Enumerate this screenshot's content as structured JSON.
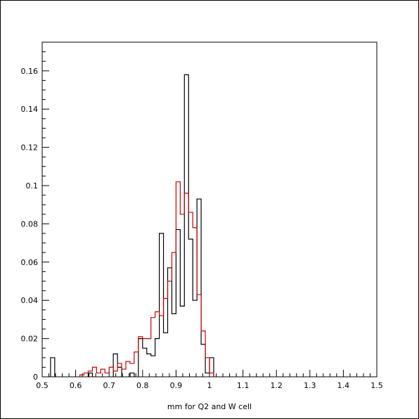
{
  "chart_data": {
    "type": "histogram",
    "title": "",
    "xlabel": "mm for Q2 and W cell",
    "ylabel": "",
    "xlim": [
      0.5,
      1.5
    ],
    "ylim": [
      0,
      0.175
    ],
    "grid": false,
    "legend": "none",
    "bin_width": 0.0125,
    "x_ticks": [
      0.5,
      0.6,
      0.7,
      0.8,
      0.9,
      1.0,
      1.1,
      1.2,
      1.3,
      1.4,
      1.5
    ],
    "x_tick_labels": [
      "0.5",
      "0.6",
      "0.7",
      "0.8",
      "0.9",
      "1",
      "1.1",
      "1.2",
      "1.3",
      "1.4",
      "1.5"
    ],
    "y_ticks": [
      0,
      0.02,
      0.04,
      0.06,
      0.08,
      0.1,
      0.12,
      0.14,
      0.16
    ],
    "y_tick_labels": [
      "0",
      "0.02",
      "0.04",
      "0.06",
      "0.08",
      "0.1",
      "0.12",
      "0.14",
      "0.16"
    ],
    "series": [
      {
        "color": "#000000",
        "bins": [
          [
            0.525,
            0.01
          ],
          [
            0.6375,
            0.002
          ],
          [
            0.7125,
            0.012
          ],
          [
            0.725,
            0.005
          ],
          [
            0.7625,
            0.002
          ],
          [
            0.7875,
            0.02
          ],
          [
            0.8,
            0.015
          ],
          [
            0.8125,
            0.012
          ],
          [
            0.825,
            0.011
          ],
          [
            0.8375,
            0.02
          ],
          [
            0.85,
            0.075
          ],
          [
            0.8625,
            0.023
          ],
          [
            0.875,
            0.057
          ],
          [
            0.8875,
            0.033
          ],
          [
            0.9,
            0.077
          ],
          [
            0.9125,
            0.037
          ],
          [
            0.925,
            0.158
          ],
          [
            0.9375,
            0.072
          ],
          [
            0.95,
            0.04
          ],
          [
            0.9625,
            0.093
          ],
          [
            0.975,
            0.017
          ],
          [
            0.9875,
            0.002
          ],
          [
            1.0,
            0.01
          ]
        ]
      },
      {
        "color": "#cc0000",
        "bins": [
          [
            0.6125,
            0.001
          ],
          [
            0.625,
            0.002
          ],
          [
            0.6375,
            0.003
          ],
          [
            0.65,
            0.005
          ],
          [
            0.6625,
            0.002
          ],
          [
            0.675,
            0.004
          ],
          [
            0.6875,
            0.002
          ],
          [
            0.7,
            0.005
          ],
          [
            0.7125,
            0.003
          ],
          [
            0.725,
            0.007
          ],
          [
            0.7375,
            0.004
          ],
          [
            0.75,
            0.008
          ],
          [
            0.7625,
            0.007
          ],
          [
            0.775,
            0.013
          ],
          [
            0.7875,
            0.021
          ],
          [
            0.8,
            0.02
          ],
          [
            0.8125,
            0.02
          ],
          [
            0.825,
            0.031
          ],
          [
            0.8375,
            0.034
          ],
          [
            0.85,
            0.032
          ],
          [
            0.8625,
            0.041
          ],
          [
            0.875,
            0.05
          ],
          [
            0.8875,
            0.065
          ],
          [
            0.9,
            0.102
          ],
          [
            0.9125,
            0.085
          ],
          [
            0.925,
            0.096
          ],
          [
            0.9375,
            0.086
          ],
          [
            0.95,
            0.078
          ],
          [
            0.9625,
            0.043
          ],
          [
            0.975,
            0.024
          ],
          [
            0.9875,
            0.01
          ],
          [
            1.0,
            0.002
          ]
        ]
      }
    ]
  }
}
